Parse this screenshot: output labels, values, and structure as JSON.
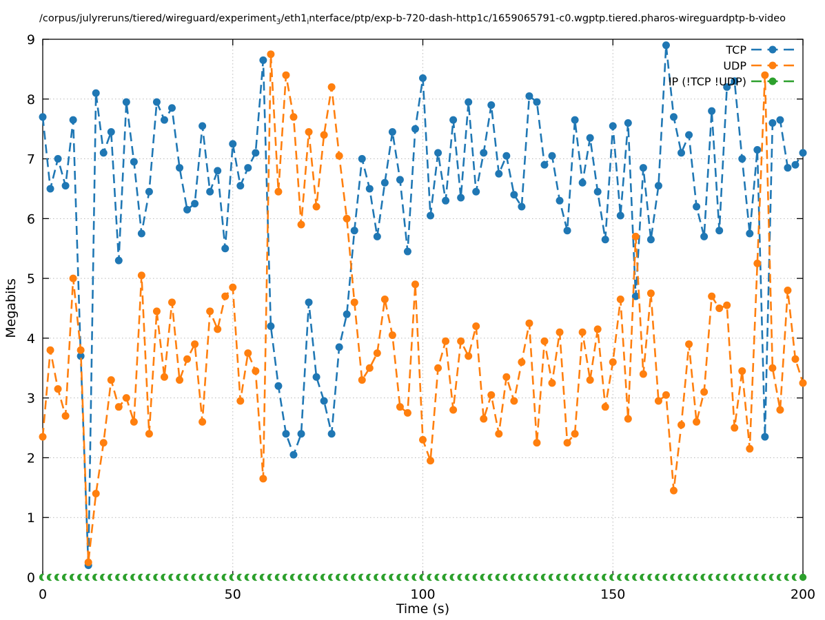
{
  "figure": {
    "title_plain": "/corpus/julyreruns/tiered/wireguard/experiment_3/eth1_interface/ptp/exp-b-720-dash-http1c/1659065791-c0.wgptp.tiered.pharos-wireguardptp-b-video",
    "title_parts": [
      {
        "text": "/corpus/julyreruns/tiered/wireguard/experiment"
      },
      {
        "sub": "3"
      },
      {
        "text": "/eth1"
      },
      {
        "sub": "i"
      },
      {
        "text": "nterface/ptp/exp-b-720-dash-http1c/1659065791-c0.wgptp.tiered.pharos-wireguardptp-b-video"
      }
    ]
  },
  "chart_data": {
    "type": "line",
    "title": "/corpus/julyreruns/tiered/wireguard/experiment_3/eth1_interface/ptp/exp-b-720-dash-http1c/1659065791-c0.wgptp.tiered.pharos-wireguardptp-b-video",
    "xlabel": "Time (s)",
    "ylabel": "Megabits",
    "xlim": [
      0,
      200
    ],
    "ylim": [
      0,
      9
    ],
    "xticks": [
      0,
      50,
      100,
      150,
      200
    ],
    "yticks": [
      0,
      1,
      2,
      3,
      4,
      5,
      6,
      7,
      8,
      9
    ],
    "grid": true,
    "grid_color": "#b8b8b8",
    "legend_position": "top-right",
    "line_style": "dashed-with-filled-circle-markers",
    "x": [
      0,
      2,
      4,
      6,
      8,
      10,
      12,
      14,
      16,
      18,
      20,
      22,
      24,
      26,
      28,
      30,
      32,
      34,
      36,
      38,
      40,
      42,
      44,
      46,
      48,
      50,
      52,
      54,
      56,
      58,
      60,
      62,
      64,
      66,
      68,
      70,
      72,
      74,
      76,
      78,
      80,
      82,
      84,
      86,
      88,
      90,
      92,
      94,
      96,
      98,
      100,
      102,
      104,
      106,
      108,
      110,
      112,
      114,
      116,
      118,
      120,
      122,
      124,
      126,
      128,
      130,
      132,
      134,
      136,
      138,
      140,
      142,
      144,
      146,
      148,
      150,
      152,
      154,
      156,
      158,
      160,
      162,
      164,
      166,
      168,
      170,
      172,
      174,
      176,
      178,
      180,
      182,
      184,
      186,
      188,
      190,
      192,
      194,
      196,
      198,
      200
    ],
    "series": [
      {
        "name": "TCP",
        "color": "#1f77b4",
        "marker": "filled-circle",
        "values": [
          7.7,
          6.5,
          7.0,
          6.55,
          7.65,
          3.7,
          0.2,
          8.1,
          7.1,
          7.45,
          5.3,
          7.95,
          6.95,
          5.75,
          6.45,
          7.95,
          7.65,
          7.85,
          6.85,
          6.15,
          6.25,
          7.55,
          6.45,
          6.8,
          5.5,
          7.25,
          6.55,
          6.85,
          7.1,
          8.65,
          4.2,
          3.2,
          2.4,
          2.05,
          2.4,
          4.6,
          3.35,
          2.95,
          2.4,
          3.85,
          4.4,
          5.8,
          7.0,
          6.5,
          5.7,
          6.6,
          7.45,
          6.65,
          5.45,
          7.5,
          8.35,
          6.05,
          7.1,
          6.3,
          7.65,
          6.35,
          7.95,
          6.45,
          7.1,
          7.9,
          6.75,
          7.05,
          6.4,
          6.2,
          8.05,
          7.95,
          6.9,
          7.05,
          6.3,
          5.8,
          7.65,
          6.6,
          7.35,
          6.45,
          5.65,
          7.55,
          6.05,
          7.6,
          4.7,
          6.85,
          5.65,
          6.55,
          8.9,
          7.7,
          7.1,
          7.4,
          6.2,
          5.7,
          7.8,
          5.8,
          8.2,
          8.3,
          7.0,
          5.75,
          7.15,
          2.35,
          7.6,
          7.65,
          6.85,
          6.9,
          7.1
        ]
      },
      {
        "name": "UDP",
        "color": "#ff7f0e",
        "marker": "filled-circle",
        "values": [
          2.35,
          3.8,
          3.15,
          2.7,
          5.0,
          3.8,
          0.25,
          1.4,
          2.25,
          3.3,
          2.85,
          3.0,
          2.6,
          5.05,
          2.4,
          4.45,
          3.35,
          4.6,
          3.3,
          3.65,
          3.9,
          2.6,
          4.45,
          4.15,
          4.7,
          4.85,
          2.95,
          3.75,
          3.45,
          1.65,
          8.75,
          6.45,
          8.4,
          7.7,
          5.9,
          7.45,
          6.2,
          7.4,
          8.2,
          7.05,
          6.0,
          4.6,
          3.3,
          3.5,
          3.75,
          4.65,
          4.05,
          2.85,
          2.75,
          4.9,
          2.3,
          1.95,
          3.5,
          3.95,
          2.8,
          3.95,
          3.7,
          4.2,
          2.65,
          3.05,
          2.4,
          3.35,
          2.95,
          3.6,
          4.25,
          2.25,
          3.95,
          3.25,
          4.1,
          2.25,
          2.4,
          4.1,
          3.3,
          4.15,
          2.85,
          3.6,
          4.65,
          2.65,
          5.7,
          3.4,
          4.75,
          2.95,
          3.05,
          1.45,
          2.55,
          3.9,
          2.6,
          3.1,
          4.7,
          4.5,
          4.55,
          2.5,
          3.45,
          2.15,
          5.25,
          8.4,
          3.5,
          2.8,
          4.8,
          3.65,
          3.25
        ]
      },
      {
        "name": "IP (!TCP  !UDP)",
        "color": "#2ca02c",
        "marker": "filled-circle-occluded",
        "values": [
          0,
          0,
          0,
          0,
          0,
          0,
          0,
          0,
          0,
          0,
          0,
          0,
          0,
          0,
          0,
          0,
          0,
          0,
          0,
          0,
          0,
          0,
          0,
          0,
          0,
          0,
          0,
          0,
          0,
          0,
          0,
          0,
          0,
          0,
          0,
          0,
          0,
          0,
          0,
          0,
          0,
          0,
          0,
          0,
          0,
          0,
          0,
          0,
          0,
          0,
          0,
          0,
          0,
          0,
          0,
          0,
          0,
          0,
          0,
          0,
          0,
          0,
          0,
          0,
          0,
          0,
          0,
          0,
          0,
          0,
          0,
          0,
          0,
          0,
          0,
          0,
          0,
          0,
          0,
          0,
          0,
          0,
          0,
          0,
          0,
          0,
          0,
          0,
          0,
          0,
          0,
          0,
          0,
          0,
          0,
          0,
          0,
          0,
          0,
          0,
          0
        ]
      }
    ]
  }
}
